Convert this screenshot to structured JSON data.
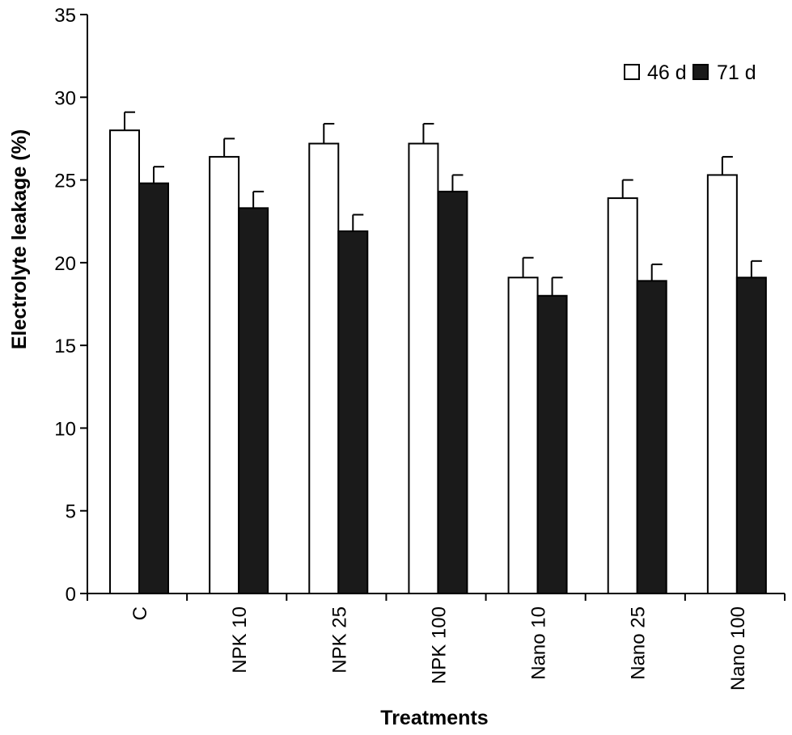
{
  "chart_data": {
    "type": "bar",
    "title": "",
    "xlabel": "Treatments",
    "ylabel": "Electrolyte leakage (%)",
    "ylim": [
      0,
      35
    ],
    "yticks": [
      0,
      5,
      10,
      15,
      20,
      25,
      30,
      35
    ],
    "categories": [
      "C",
      "NPK 10",
      "NPK 25",
      "NPK 100",
      "Nano 10",
      "Nano 25",
      "Nano 100"
    ],
    "series": [
      {
        "name": "46 d",
        "color": "#ffffff",
        "values": [
          28.0,
          26.4,
          27.2,
          27.2,
          19.1,
          23.9,
          25.3
        ],
        "errors": [
          1.1,
          1.1,
          1.2,
          1.2,
          1.2,
          1.1,
          1.1
        ]
      },
      {
        "name": "71 d",
        "color": "#1a1a1a",
        "values": [
          24.8,
          23.3,
          21.9,
          24.3,
          18.0,
          18.9,
          19.1
        ],
        "errors": [
          1.0,
          1.0,
          1.0,
          1.0,
          1.1,
          1.0,
          1.0
        ]
      }
    ],
    "legend_position": "top-right",
    "grid": false
  }
}
